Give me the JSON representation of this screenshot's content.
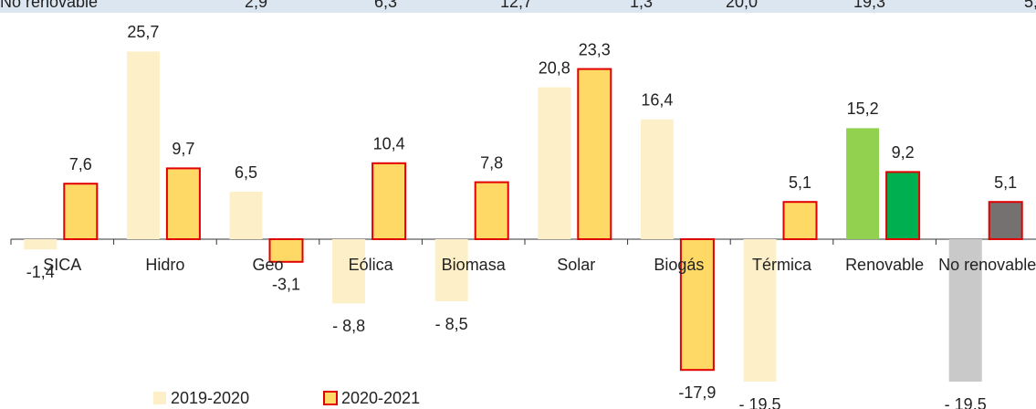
{
  "top_row": {
    "label": "No renovable",
    "values": [
      "2,9",
      "6,3",
      "12,7",
      "1,3",
      "20,0",
      "19,3",
      "5,"
    ]
  },
  "chart_data": {
    "type": "bar",
    "categories": [
      "SICA",
      "Hidro",
      "Geo",
      "Eólica",
      "Biomasa",
      "Solar",
      "Biogás",
      "Térmica",
      "Renovable",
      "No renovable"
    ],
    "series": [
      {
        "name": "2019-2020",
        "color": "#fdf0c8",
        "stroke": "none",
        "colors": [
          "#fdf0c8",
          "#fdf0c8",
          "#fdf0c8",
          "#fdf0c8",
          "#fdf0c8",
          "#fdf0c8",
          "#fdf0c8",
          "#fdf0c8",
          "#92d050",
          "#c9c9c9"
        ],
        "values": [
          -1.4,
          25.7,
          6.5,
          -8.8,
          -8.5,
          20.8,
          16.4,
          -19.5,
          15.2,
          -19.5
        ],
        "value_labels": [
          "-1,4",
          "25,7",
          "6,5",
          "- 8,8",
          "- 8,5",
          "20,8",
          "16,4",
          "- 19,5",
          "15,2",
          "- 19,5"
        ]
      },
      {
        "name": "2020-2021",
        "color": "#ffd966",
        "stroke": "#e00000",
        "colors": [
          "#ffd966",
          "#ffd966",
          "#ffd966",
          "#ffd966",
          "#ffd966",
          "#ffd966",
          "#ffd966",
          "#ffd966",
          "#00b050",
          "#767171"
        ],
        "values": [
          7.6,
          9.7,
          -3.1,
          10.4,
          7.8,
          23.3,
          -17.9,
          5.1,
          9.2,
          5.1
        ],
        "value_labels": [
          "7,6",
          "9,7",
          "-3,1",
          "10,4",
          "7,8",
          "23,3",
          "-17,9",
          "5,1",
          "9,2",
          "5,1"
        ]
      }
    ]
  }
}
